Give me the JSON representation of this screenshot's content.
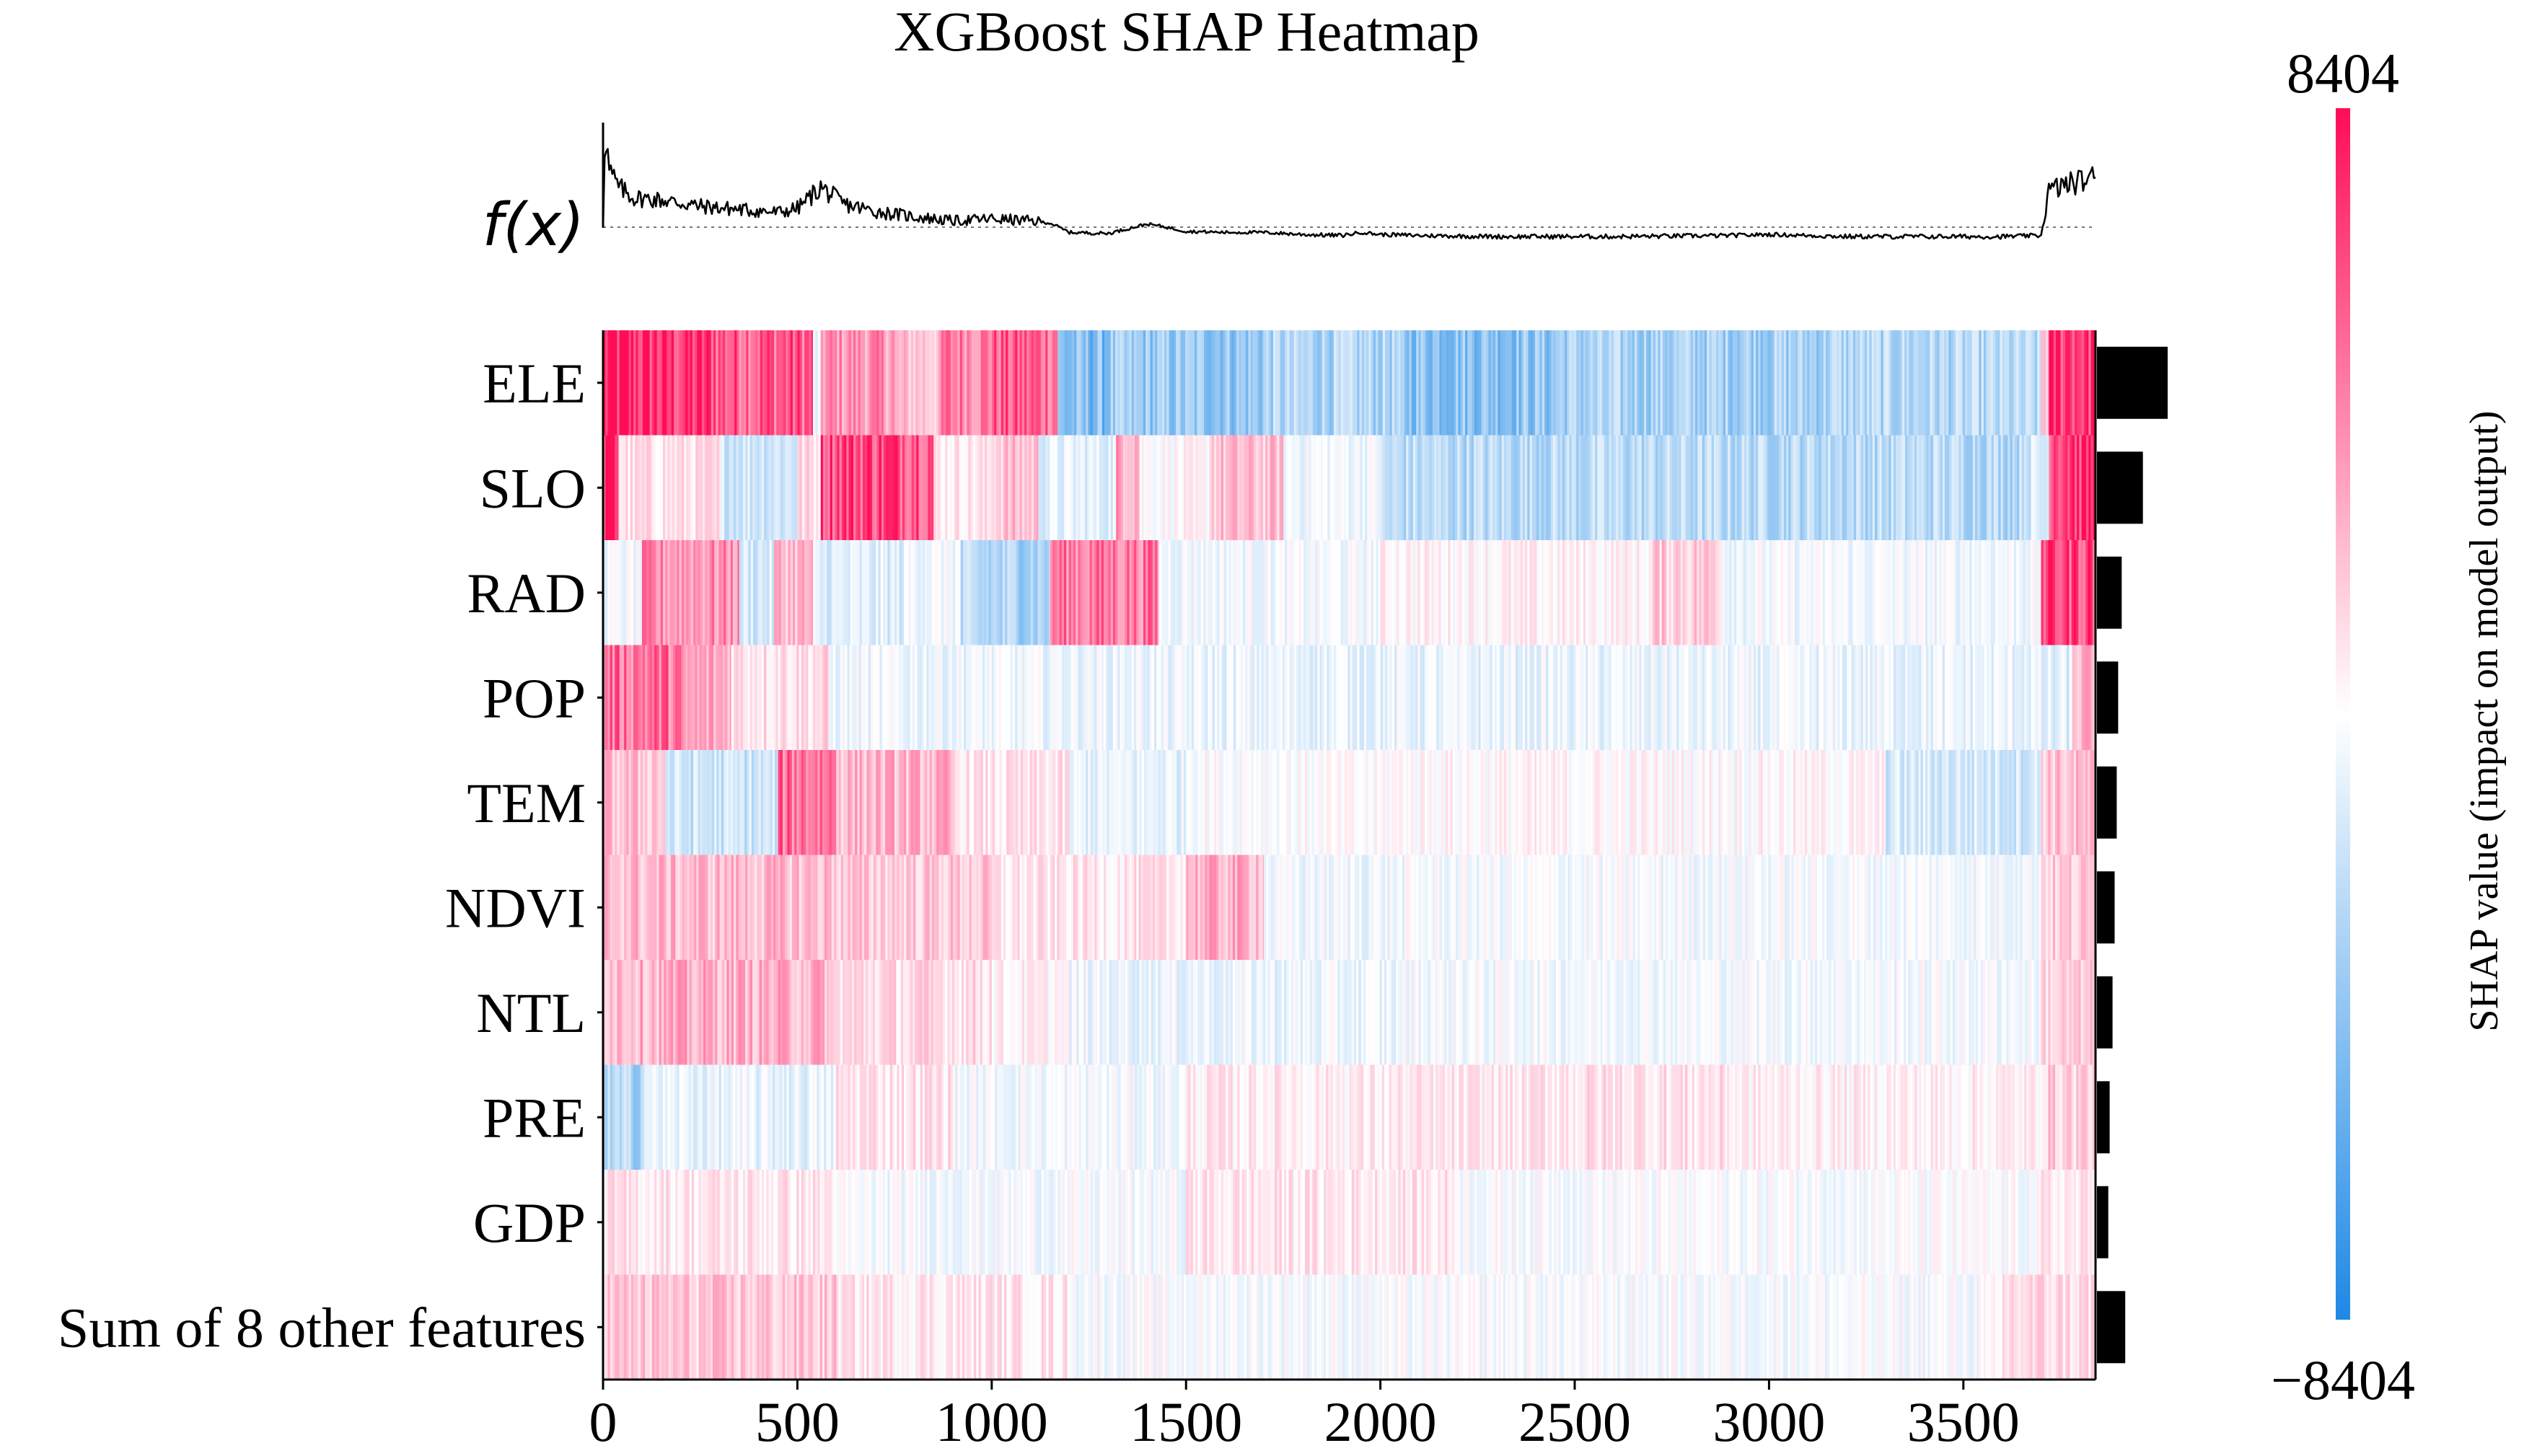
{
  "chart_data": {
    "type": "heatmap",
    "title": "XGBoost SHAP Heatmap",
    "fx_label": "f(x)",
    "colorbar": {
      "label": "SHAP value (impact on model output)",
      "max_label": "8404",
      "min_label": "−8404",
      "vmin": -8404,
      "vmax": 8404,
      "low_color": "#1e88e5",
      "mid_color": "#ffffff",
      "high_color": "#ff0d57"
    },
    "xlim": [
      0,
      3840
    ],
    "xticks": [
      0,
      500,
      1000,
      1500,
      2000,
      2500,
      3000,
      3500
    ],
    "xtick_labels": [
      "0",
      "500",
      "1000",
      "1500",
      "2000",
      "2500",
      "3000",
      "3500"
    ],
    "features": [
      {
        "name": "ELE",
        "importance": 1.0,
        "segments": [
          [
            0,
            140,
            0.88
          ],
          [
            140,
            290,
            0.82
          ],
          [
            290,
            540,
            0.7
          ],
          [
            540,
            560,
            -0.1
          ],
          [
            560,
            750,
            0.45
          ],
          [
            750,
            870,
            0.25
          ],
          [
            870,
            1000,
            0.55
          ],
          [
            1000,
            1170,
            0.65
          ],
          [
            1170,
            1300,
            -0.55
          ],
          [
            1300,
            1700,
            -0.45
          ],
          [
            1700,
            2050,
            -0.35
          ],
          [
            2050,
            2450,
            -0.48
          ],
          [
            2450,
            3150,
            -0.38
          ],
          [
            3150,
            3700,
            -0.33
          ],
          [
            3700,
            3720,
            0.3
          ],
          [
            3720,
            3840,
            0.88
          ]
        ]
      },
      {
        "name": "SLO",
        "importance": 0.65,
        "segments": [
          [
            0,
            40,
            0.9
          ],
          [
            40,
            300,
            0.12
          ],
          [
            300,
            500,
            -0.18
          ],
          [
            500,
            560,
            0.15
          ],
          [
            560,
            850,
            0.8
          ],
          [
            850,
            1000,
            0.1
          ],
          [
            1000,
            1120,
            0.25
          ],
          [
            1120,
            1320,
            -0.12
          ],
          [
            1320,
            1380,
            0.4
          ],
          [
            1380,
            1560,
            0.02
          ],
          [
            1560,
            1750,
            0.25
          ],
          [
            1750,
            2000,
            -0.05
          ],
          [
            2000,
            3650,
            -0.3
          ],
          [
            3650,
            3720,
            -0.18
          ],
          [
            3720,
            3840,
            0.9
          ]
        ]
      },
      {
        "name": "RAD",
        "importance": 0.35,
        "segments": [
          [
            0,
            100,
            -0.05
          ],
          [
            100,
            350,
            0.45
          ],
          [
            350,
            440,
            -0.18
          ],
          [
            440,
            540,
            0.3
          ],
          [
            540,
            780,
            -0.15
          ],
          [
            780,
            920,
            -0.05
          ],
          [
            920,
            1150,
            -0.35
          ],
          [
            1150,
            1430,
            0.55
          ],
          [
            1430,
            2000,
            -0.05
          ],
          [
            2000,
            2700,
            0.05
          ],
          [
            2700,
            2880,
            0.22
          ],
          [
            2880,
            3700,
            -0.05
          ],
          [
            3700,
            3840,
            0.8
          ]
        ]
      },
      {
        "name": "POP",
        "importance": 0.3,
        "segments": [
          [
            0,
            200,
            0.6
          ],
          [
            200,
            330,
            0.35
          ],
          [
            330,
            580,
            0.15
          ],
          [
            580,
            1400,
            -0.07
          ],
          [
            1400,
            3700,
            -0.09
          ],
          [
            3700,
            3780,
            -0.15
          ],
          [
            3780,
            3840,
            0.3
          ]
        ]
      },
      {
        "name": "TEM",
        "importance": 0.28,
        "segments": [
          [
            0,
            160,
            0.25
          ],
          [
            160,
            450,
            -0.22
          ],
          [
            450,
            600,
            0.6
          ],
          [
            600,
            900,
            0.3
          ],
          [
            900,
            1200,
            0.1
          ],
          [
            1200,
            1500,
            -0.1
          ],
          [
            1500,
            2000,
            0.0
          ],
          [
            2000,
            3300,
            0.03
          ],
          [
            3300,
            3700,
            -0.18
          ],
          [
            3700,
            3840,
            0.25
          ]
        ]
      },
      {
        "name": "NDVI",
        "importance": 0.25,
        "segments": [
          [
            0,
            600,
            0.28
          ],
          [
            600,
            1000,
            0.22
          ],
          [
            1000,
            1500,
            0.1
          ],
          [
            1500,
            1700,
            0.32
          ],
          [
            1700,
            2050,
            -0.06
          ],
          [
            2050,
            3700,
            -0.04
          ],
          [
            3700,
            3840,
            0.2
          ]
        ]
      },
      {
        "name": "NTL",
        "importance": 0.22,
        "segments": [
          [
            0,
            580,
            0.32
          ],
          [
            580,
            1000,
            0.15
          ],
          [
            1000,
            1200,
            0.05
          ],
          [
            1200,
            2050,
            -0.08
          ],
          [
            2050,
            3700,
            -0.04
          ],
          [
            3700,
            3840,
            0.18
          ]
        ]
      },
      {
        "name": "PRE",
        "importance": 0.18,
        "segments": [
          [
            0,
            100,
            -0.35
          ],
          [
            100,
            600,
            -0.1
          ],
          [
            600,
            900,
            0.12
          ],
          [
            900,
            1500,
            -0.05
          ],
          [
            1500,
            2400,
            0.08
          ],
          [
            2400,
            2900,
            0.12
          ],
          [
            2900,
            3700,
            0.06
          ],
          [
            3700,
            3840,
            0.2
          ]
        ]
      },
      {
        "name": "GDP",
        "importance": 0.16,
        "segments": [
          [
            0,
            600,
            0.1
          ],
          [
            600,
            1500,
            -0.04
          ],
          [
            1500,
            2200,
            0.1
          ],
          [
            2200,
            3700,
            -0.02
          ],
          [
            3700,
            3840,
            0.08
          ]
        ]
      },
      {
        "name": "Sum of 8 other features",
        "importance": 0.4,
        "segments": [
          [
            0,
            600,
            0.22
          ],
          [
            600,
            1200,
            0.1
          ],
          [
            1200,
            3600,
            -0.03
          ],
          [
            3600,
            3840,
            0.15
          ]
        ]
      }
    ],
    "fx_curve": {
      "x": [
        0,
        5,
        15,
        40,
        80,
        150,
        250,
        350,
        450,
        500,
        560,
        620,
        700,
        800,
        900,
        1000,
        1100,
        1150,
        1200,
        1300,
        1400,
        1450,
        1500,
        1600,
        1700,
        1800,
        1900,
        1950,
        2000,
        2100,
        2300,
        2600,
        2900,
        3000,
        3200,
        3400,
        3600,
        3700,
        3720,
        3760,
        3840
      ],
      "y": [
        0.0,
        1.0,
        0.55,
        0.38,
        0.28,
        0.26,
        0.2,
        0.17,
        0.14,
        0.18,
        0.38,
        0.22,
        0.15,
        0.1,
        0.06,
        0.08,
        0.06,
        0.04,
        -0.05,
        -0.06,
        0.03,
        0.0,
        -0.04,
        -0.05,
        -0.05,
        -0.07,
        -0.08,
        -0.05,
        -0.07,
        -0.08,
        -0.09,
        -0.09,
        -0.08,
        -0.07,
        -0.09,
        -0.09,
        -0.09,
        -0.08,
        0.35,
        0.4,
        0.48
      ]
    }
  }
}
